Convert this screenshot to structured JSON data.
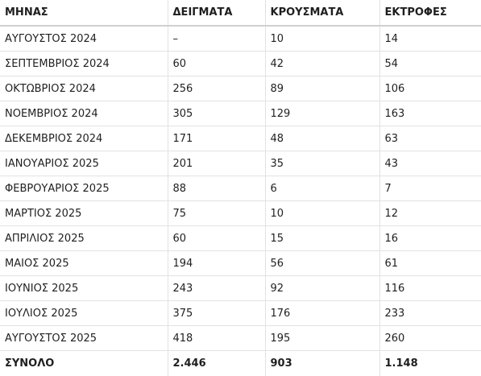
{
  "table": {
    "headers": [
      "ΜΗΝΑΣ",
      "ΔΕΙΓΜΑΤΑ",
      "ΚΡΟΥΣΜΑΤΑ",
      "ΕΚΤΡΟΦΕΣ"
    ],
    "rows": [
      [
        "ΑΥΓΟΥΣΤΟΣ 2024",
        "–",
        "10",
        "14"
      ],
      [
        "ΣΕΠΤΕΜΒΡΙΟΣ 2024",
        "60",
        "42",
        "54"
      ],
      [
        "ΟΚΤΩΒΡΙΟΣ 2024",
        "256",
        "89",
        "106"
      ],
      [
        "ΝΟΕΜΒΡΙΟΣ 2024",
        "305",
        "129",
        "163"
      ],
      [
        "ΔΕΚΕΜΒΡΙΟΣ 2024",
        "171",
        "48",
        "63"
      ],
      [
        "ΙΑΝΟΥΑΡΙΟΣ 2025",
        "201",
        "35",
        "43"
      ],
      [
        "ΦΕΒΡΟΥΑΡΙΟΣ 2025",
        "88",
        "6",
        "7"
      ],
      [
        "ΜΑΡΤΙΟΣ 2025",
        "75",
        "10",
        "12"
      ],
      [
        "ΑΠΡΙΛΙΟΣ 2025",
        "60",
        "15",
        "16"
      ],
      [
        "ΜΑΙΟΣ 2025",
        "194",
        "56",
        "61"
      ],
      [
        "ΙΟΥΝΙΟΣ 2025",
        "243",
        "92",
        "116"
      ],
      [
        "ΙΟΥΛΙΟΣ 2025",
        "375",
        "176",
        "233"
      ],
      [
        "ΑΥΓΟΥΣΤΟΣ 2025",
        "418",
        "195",
        "260"
      ]
    ],
    "total": [
      "ΣΥΝΟΛΟ",
      "2.446",
      "903",
      "1.148"
    ]
  }
}
